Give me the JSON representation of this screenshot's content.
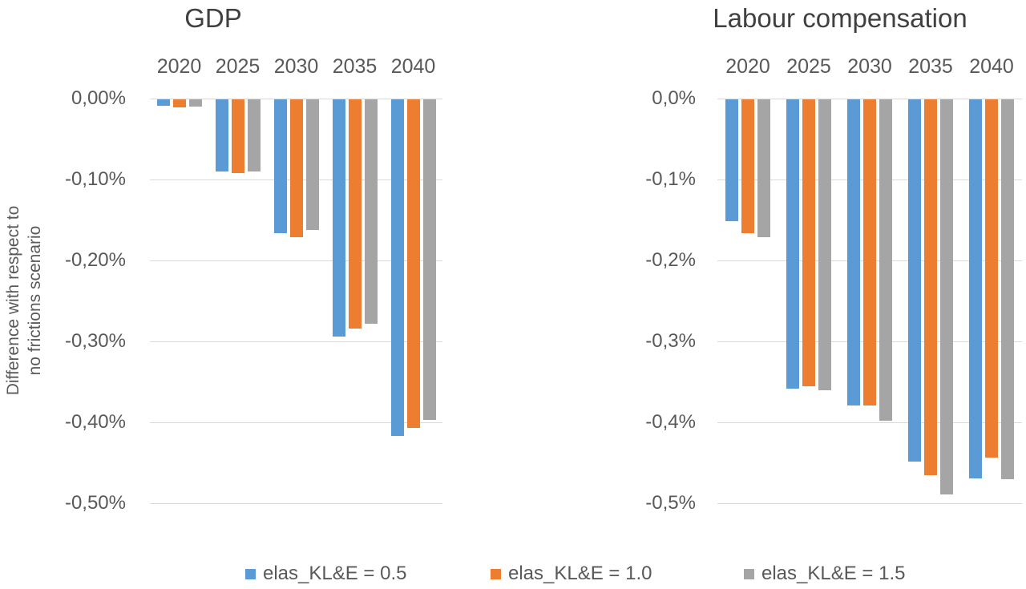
{
  "figure": {
    "background": "#ffffff",
    "text_color": "#595959",
    "title_color": "#404040",
    "gridline_color": "#d9d9d9"
  },
  "legend": {
    "position": "bottom",
    "items": [
      {
        "label": "elas_KL&E = 0.5",
        "color": "#5B9BD5"
      },
      {
        "label": "elas_KL&E = 1.0",
        "color": "#ED7D31"
      },
      {
        "label": "elas_KL&E = 1.5",
        "color": "#A5A5A5"
      }
    ]
  },
  "chart_data": [
    {
      "type": "bar",
      "title": "GDP",
      "ylabel": "Difference with respect to no frictions scenario",
      "ylabel_lines": [
        "Difference with respect to",
        "no frictions scenario"
      ],
      "xlabel": "",
      "categories": [
        "2020",
        "2025",
        "2030",
        "2035",
        "2040"
      ],
      "series": [
        {
          "name": "elas_KL&E = 0.5",
          "color": "#5B9BD5",
          "values": [
            -0.008,
            -0.089,
            -0.165,
            -0.293,
            -0.416
          ]
        },
        {
          "name": "elas_KL&E = 1.0",
          "color": "#ED7D31",
          "values": [
            -0.01,
            -0.091,
            -0.17,
            -0.283,
            -0.406
          ]
        },
        {
          "name": "elas_KL&E = 1.5",
          "color": "#A5A5A5",
          "values": [
            -0.009,
            -0.089,
            -0.161,
            -0.277,
            -0.396
          ]
        }
      ],
      "ylim": [
        -0.5,
        0
      ],
      "grid": true,
      "units": "percent",
      "yticks": [
        {
          "value": 0.0,
          "label": "0,00%"
        },
        {
          "value": -0.1,
          "label": "-0,10%"
        },
        {
          "value": -0.2,
          "label": "-0,20%"
        },
        {
          "value": -0.3,
          "label": "-0,30%"
        },
        {
          "value": -0.4,
          "label": "-0,40%"
        },
        {
          "value": -0.5,
          "label": "-0,50%"
        }
      ],
      "legend_position": "bottom"
    },
    {
      "type": "bar",
      "title": "Labour compensation",
      "ylabel": "",
      "ylabel_lines": [],
      "xlabel": "",
      "categories": [
        "2020",
        "2025",
        "2030",
        "2035",
        "2040"
      ],
      "series": [
        {
          "name": "elas_KL&E = 0.5",
          "color": "#5B9BD5",
          "values": [
            -0.15,
            -0.357,
            -0.378,
            -0.448,
            -0.468
          ]
        },
        {
          "name": "elas_KL&E = 1.0",
          "color": "#ED7D31",
          "values": [
            -0.165,
            -0.354,
            -0.378,
            -0.464,
            -0.443
          ]
        },
        {
          "name": "elas_KL&E = 1.5",
          "color": "#A5A5A5",
          "values": [
            -0.17,
            -0.359,
            -0.397,
            -0.488,
            -0.469
          ]
        }
      ],
      "ylim": [
        -0.5,
        0
      ],
      "grid": true,
      "units": "percent",
      "yticks": [
        {
          "value": 0.0,
          "label": "0,0%"
        },
        {
          "value": -0.1,
          "label": "-0,1%"
        },
        {
          "value": -0.2,
          "label": "-0,2%"
        },
        {
          "value": -0.3,
          "label": "-0,3%"
        },
        {
          "value": -0.4,
          "label": "-0,4%"
        },
        {
          "value": -0.5,
          "label": "-0,5%"
        }
      ],
      "legend_position": "bottom"
    }
  ]
}
